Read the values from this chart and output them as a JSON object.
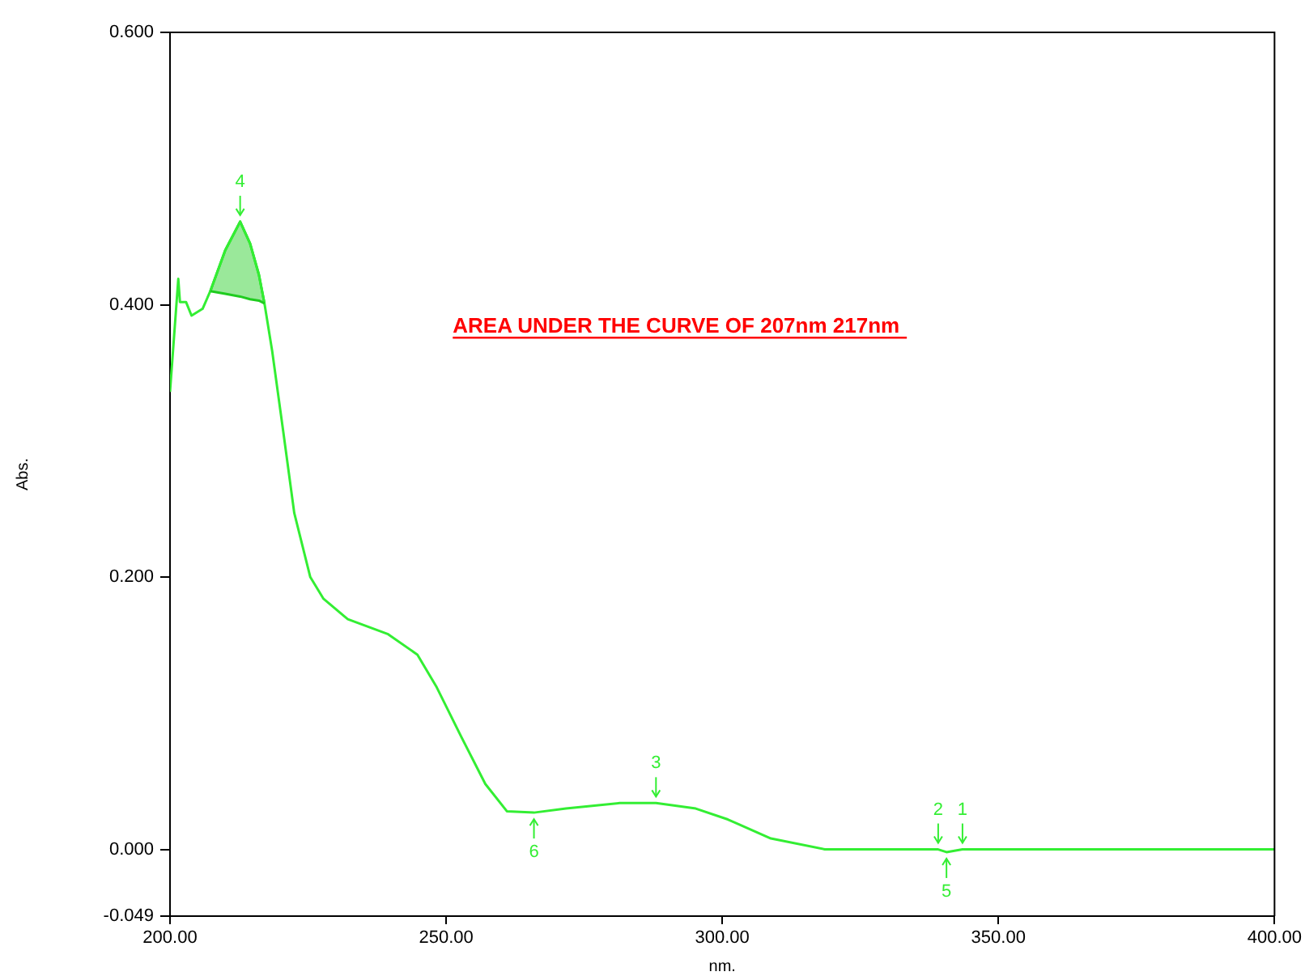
{
  "chart_data": {
    "type": "line",
    "xlabel": "nm.",
    "ylabel": "Abs.",
    "xlim": [
      200,
      400
    ],
    "ylim": [
      -0.049,
      0.6
    ],
    "xticks": [
      {
        "value": 200,
        "label": "200.00"
      },
      {
        "value": 250,
        "label": "250.00"
      },
      {
        "value": 300,
        "label": "300.00"
      },
      {
        "value": 350,
        "label": "350.00"
      },
      {
        "value": 400,
        "label": "400.00"
      }
    ],
    "yticks": [
      {
        "value": -0.049,
        "label": "-0.049"
      },
      {
        "value": 0,
        "label": "0.000"
      },
      {
        "value": 0.2,
        "label": "0.200"
      },
      {
        "value": 0.4,
        "label": "0.400"
      },
      {
        "value": 0.6,
        "label": "0.600"
      }
    ],
    "grid": false,
    "legend": false,
    "marker": "none",
    "line_style": "solid",
    "series": [
      {
        "color": "#33ee33",
        "x": [
          200,
          201.5,
          201.8,
          202.9,
          203.9,
          205.9,
          207.3,
          210,
          212.7,
          214.5,
          216.1,
          217.1,
          218.5,
          220.5,
          222.5,
          225.4,
          227.8,
          232.2,
          239.5,
          244.8,
          248.3,
          252.7,
          257.1,
          261,
          265.9,
          271.7,
          281.4,
          288,
          295.2,
          301,
          308.8,
          318.6,
          330,
          339.1,
          340.6,
          343.5,
          360,
          380,
          400
        ],
        "values": [
          0.336,
          0.419,
          0.402,
          0.402,
          0.392,
          0.397,
          0.41,
          0.44,
          0.461,
          0.445,
          0.422,
          0.401,
          0.366,
          0.307,
          0.247,
          0.2,
          0.184,
          0.169,
          0.158,
          0.143,
          0.119,
          0.083,
          0.048,
          0.028,
          0.027,
          0.03,
          0.034,
          0.034,
          0.03,
          0.022,
          0.008,
          0.0,
          0.0,
          0.0,
          -0.002,
          0.0,
          0.0,
          0.0,
          0.0
        ]
      },
      {
        "type": "line",
        "color": "#1fcc1f",
        "x": [
          207.3,
          210,
          212.7,
          214.5,
          216.1,
          217.1
        ],
        "values": [
          0.41,
          0.408,
          0.406,
          0.404,
          0.403,
          0.401
        ]
      },
      {
        "type": "area",
        "color": "#1fcc1f",
        "x": [
          207.3,
          210,
          212.7,
          214.5,
          216.1,
          217.1
        ],
        "values": [
          0.41,
          0.44,
          0.461,
          0.445,
          0.422,
          0.401
        ]
      }
    ],
    "annotations": [
      "AREA UNDER THE CURVE OF 207nm 217nm",
      {
        "text": "1",
        "x": 343.5,
        "y": 0.0
      },
      {
        "text": "2",
        "x": 339.1,
        "y": 0.0
      },
      {
        "text": "3",
        "x": 288,
        "y": 0.034
      },
      {
        "text": "4",
        "x": 212.7,
        "y": 0.461
      },
      {
        "text": "5",
        "x": 340.6,
        "y": -0.002
      },
      {
        "text": "6",
        "x": 265.9,
        "y": 0.027
      }
    ]
  }
}
